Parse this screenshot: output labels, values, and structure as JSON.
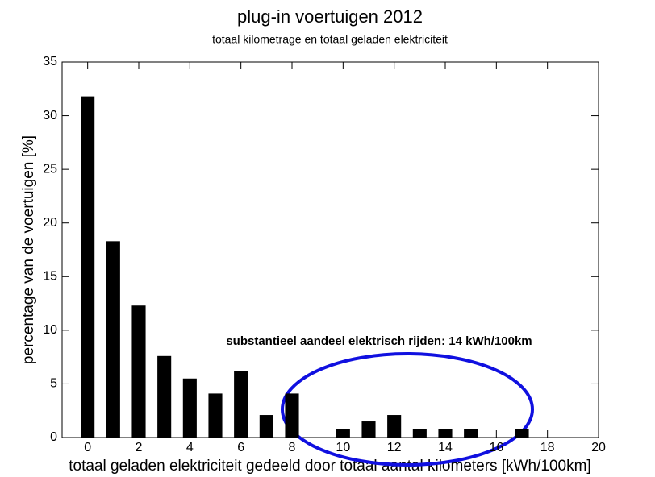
{
  "chart_data": {
    "type": "bar",
    "title": "plug-in voertuigen 2012",
    "subtitle": "totaal kilometrage en totaal geladen elektriciteit",
    "x_label": "totaal geladen elektriciteit gedeeld door totaal aantal kilometers [kWh/100km]",
    "y_label": "percentage van de voertuigen [%]",
    "annotation": "substantieel aandeel elektrisch rijden: 14 kWh/100km",
    "annotation_color": "#1010e0",
    "x": [
      0,
      1,
      2,
      3,
      4,
      5,
      6,
      7,
      8,
      10,
      11,
      12,
      13,
      14,
      15,
      17
    ],
    "values": [
      31.8,
      18.3,
      12.3,
      7.6,
      5.5,
      4.1,
      6.2,
      2.1,
      4.1,
      0.8,
      1.5,
      2.1,
      0.8,
      0.8,
      0.8,
      0.8
    ],
    "color": "#000000",
    "xlim": [
      -1,
      20
    ],
    "xticks": [
      0,
      2,
      4,
      6,
      8,
      10,
      12,
      14,
      16,
      18,
      20
    ],
    "ylim": [
      0,
      35
    ],
    "yticks": [
      0,
      5,
      10,
      15,
      20,
      25,
      30,
      35
    ]
  }
}
